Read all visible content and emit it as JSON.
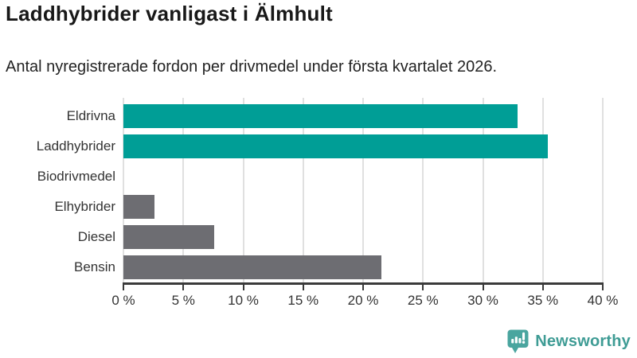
{
  "header": {
    "title": "Laddhybrider vanligast i Älmhult",
    "subtitle": "Antal nyregistrerade fordon per drivmedel under första kvartalet 2026."
  },
  "chart_data": {
    "type": "bar",
    "orientation": "horizontal",
    "title": "Laddhybrider vanligast i Älmhult",
    "subtitle": "Antal nyregistrerade fordon per drivmedel under första kvartalet 2026.",
    "categories": [
      "Eldrivna",
      "Laddhybrider",
      "Biodrivmedel",
      "Elhybrider",
      "Diesel",
      "Bensin"
    ],
    "values": [
      32.9,
      35.4,
      0,
      2.6,
      7.6,
      21.5
    ],
    "unit": "%",
    "xlim": [
      0,
      40
    ],
    "xticks": [
      0,
      5,
      10,
      15,
      20,
      25,
      30,
      35,
      40
    ],
    "xtick_labels": [
      "0 %",
      "5 %",
      "10 %",
      "15 %",
      "20 %",
      "25 %",
      "30 %",
      "35 %",
      "40 %"
    ],
    "bar_colors": [
      "#009e96",
      "#009e96",
      "#6d6d72",
      "#6d6d72",
      "#6d6d72",
      "#6d6d72"
    ],
    "highlight_color": "#009e96",
    "default_color": "#6d6d72",
    "grid": true,
    "gridline_color": "#e0e0e0",
    "axis_color": "#3a3a3a",
    "legend": "none"
  },
  "branding": {
    "logo_text": "Newsworthy",
    "logo_color": "#3f9c95",
    "logo_icon_color": "#4aa59f",
    "logo_icon": "newsworthy-chart-bubble-icon"
  }
}
